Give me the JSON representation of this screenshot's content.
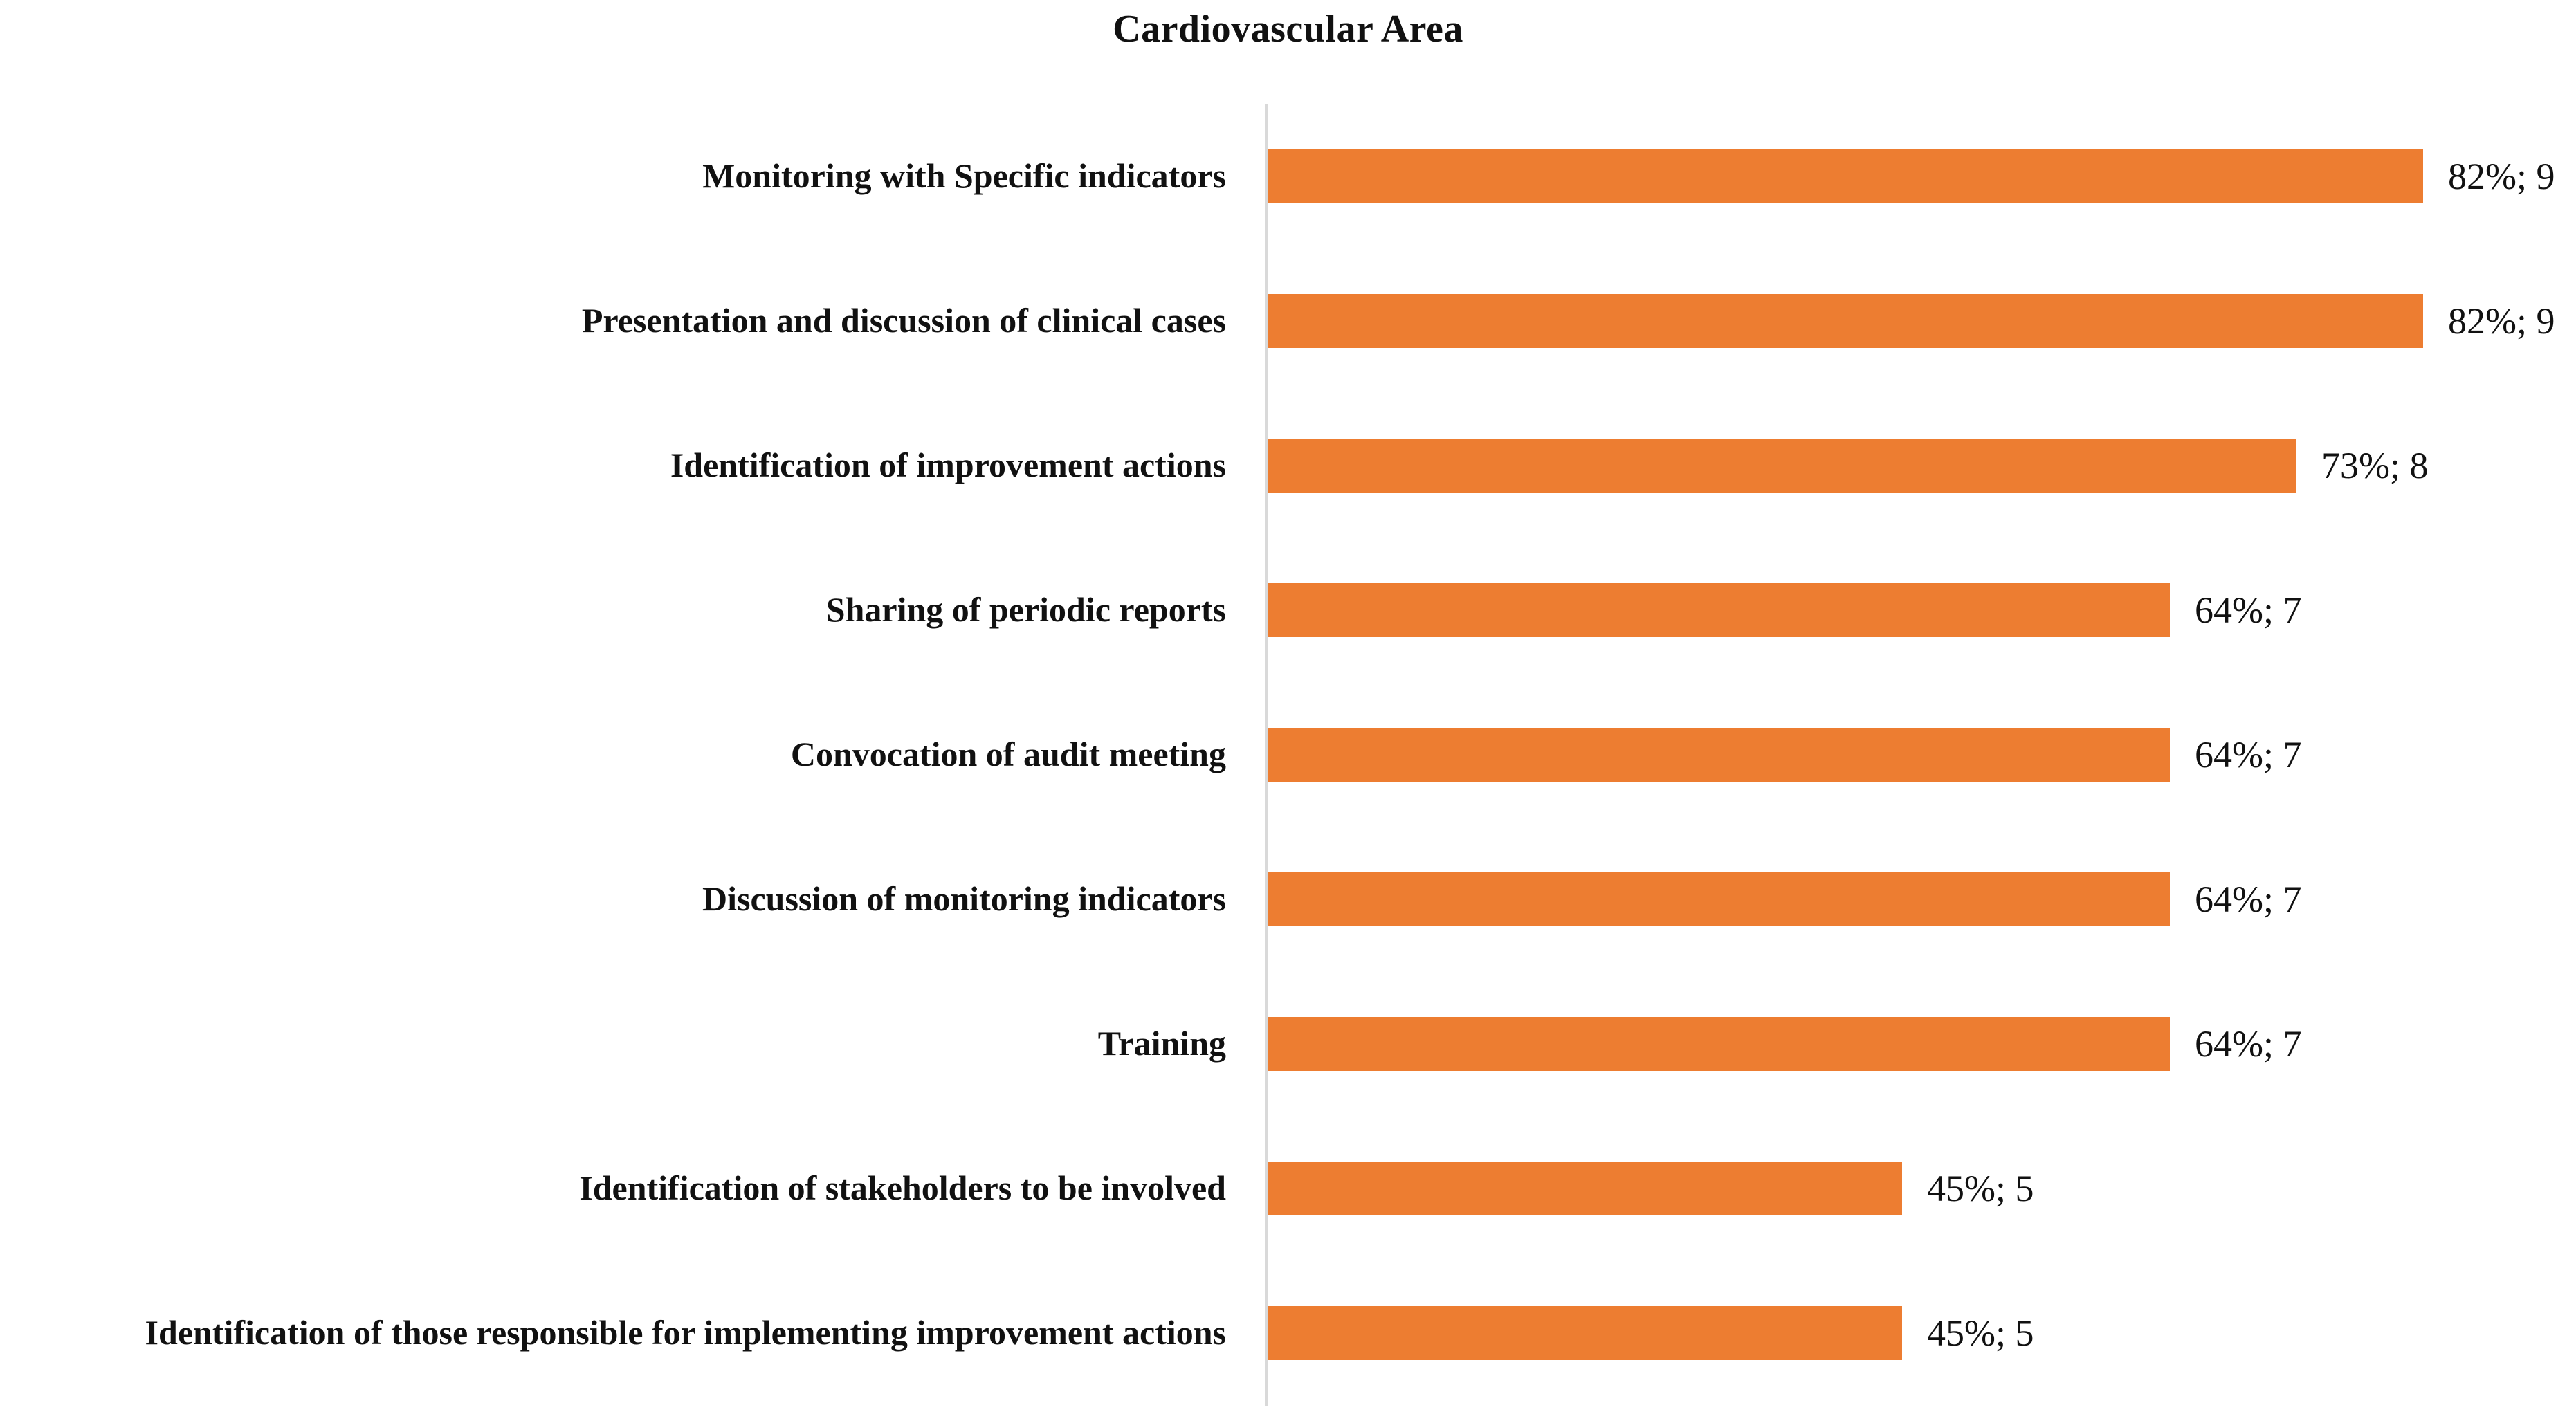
{
  "title": "Cardiovascular Area",
  "chart_data": {
    "type": "bar",
    "orientation": "horizontal",
    "title": "Cardiovascular Area",
    "xlabel": "",
    "ylabel": "",
    "xlim": [
      0,
      100
    ],
    "grid": false,
    "legend": false,
    "bar_color": "#ED7D31",
    "axis_line_color": "#D9D9D9",
    "text_color": "#111111",
    "categories": [
      "Monitoring with Specific indicators",
      "Presentation and discussion of clinical cases",
      "Identification of improvement actions",
      "Sharing of periodic reports",
      "Convocation of audit meeting",
      "Discussion of monitoring indicators",
      "Training",
      "Identification of stakeholders to be involved",
      "Identification of those responsible for implementing improvement actions"
    ],
    "series": [
      {
        "name": "Percentage",
        "values": [
          82,
          82,
          73,
          64,
          64,
          64,
          64,
          45,
          45
        ]
      },
      {
        "name": "Count",
        "values": [
          9,
          9,
          8,
          7,
          7,
          7,
          7,
          5,
          5
        ]
      }
    ],
    "data_labels": [
      "82%; 9",
      "82%; 9",
      "73%; 8",
      "64%; 7",
      "64%; 7",
      "64%; 7",
      "64%; 7",
      "45%; 5",
      "45%; 5"
    ]
  }
}
